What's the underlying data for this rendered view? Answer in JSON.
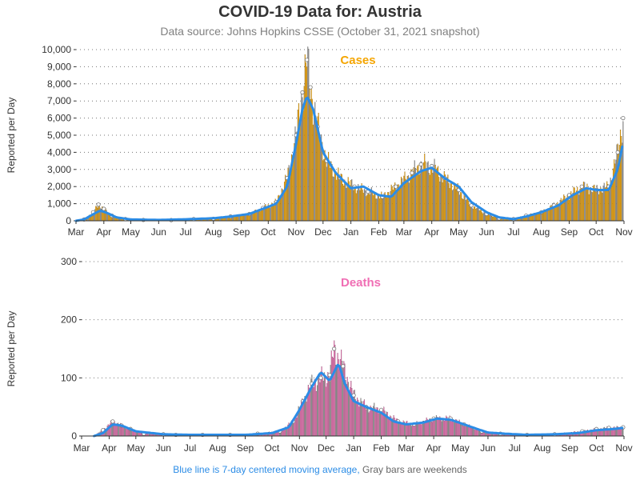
{
  "title": "COVID-19 Data for: Austria",
  "subtitle": "Data source: Johns Hopkins CSSE (October 31, 2021 snapshot)",
  "footnote": {
    "blue": "Blue line is 7-day centered moving average,",
    "gray": "Gray bars are weekends"
  },
  "colors": {
    "cases": "#f5a500",
    "deaths": "#f06eb4",
    "average": "#2b8ce6",
    "weekend": "#999999"
  },
  "chart_data": [
    {
      "type": "bar",
      "title": "Cases",
      "ylabel": "Reported per Day",
      "ylim": [
        0,
        10000
      ],
      "yticks": [
        "0",
        "1,000",
        "2,000",
        "3,000",
        "4,000",
        "5,000",
        "6,000",
        "7,000",
        "8,000",
        "9,000",
        "10,000"
      ],
      "xticks": [
        "Mar",
        "Apr",
        "May",
        "Jun",
        "Jul",
        "Aug",
        "Sep",
        "Oct",
        "Nov",
        "Dec",
        "Jan",
        "Feb",
        "Mar",
        "Apr",
        "May",
        "Jun",
        "Jul",
        "Aug",
        "Sep",
        "Oct",
        "Nov"
      ],
      "x_start": "2020-03-01",
      "x_end": "2021-11-01",
      "grid": "horizontal dotted",
      "series": [
        {
          "name": "Reported per day",
          "points": [
            [
              "2020-03-01",
              0
            ],
            [
              "2020-03-10",
              80
            ],
            [
              "2020-03-20",
              500
            ],
            [
              "2020-03-26",
              950
            ],
            [
              "2020-04-01",
              700
            ],
            [
              "2020-04-10",
              300
            ],
            [
              "2020-04-25",
              100
            ],
            [
              "2020-05-15",
              50
            ],
            [
              "2020-06-15",
              40
            ],
            [
              "2020-07-10",
              100
            ],
            [
              "2020-08-01",
              120
            ],
            [
              "2020-08-20",
              250
            ],
            [
              "2020-09-10",
              400
            ],
            [
              "2020-09-25",
              750
            ],
            [
              "2020-10-10",
              1100
            ],
            [
              "2020-10-22",
              2500
            ],
            [
              "2020-11-01",
              5000
            ],
            [
              "2020-11-08",
              7500
            ],
            [
              "2020-11-13",
              9400
            ],
            [
              "2020-11-17",
              7800
            ],
            [
              "2020-11-25",
              5500
            ],
            [
              "2020-12-05",
              3500
            ],
            [
              "2020-12-20",
              2500
            ],
            [
              "2021-01-05",
              2000
            ],
            [
              "2021-01-20",
              1700
            ],
            [
              "2021-02-05",
              1400
            ],
            [
              "2021-02-20",
              2000
            ],
            [
              "2021-03-10",
              2800
            ],
            [
              "2021-03-20",
              3300
            ],
            [
              "2021-04-01",
              3200
            ],
            [
              "2021-04-15",
              2500
            ],
            [
              "2021-05-01",
              1800
            ],
            [
              "2021-05-15",
              900
            ],
            [
              "2021-06-01",
              400
            ],
            [
              "2021-06-15",
              150
            ],
            [
              "2021-07-01",
              100
            ],
            [
              "2021-07-15",
              300
            ],
            [
              "2021-08-01",
              500
            ],
            [
              "2021-08-15",
              900
            ],
            [
              "2021-09-01",
              1500
            ],
            [
              "2021-09-15",
              2000
            ],
            [
              "2021-10-01",
              1800
            ],
            [
              "2021-10-15",
              2000
            ],
            [
              "2021-10-25",
              4000
            ],
            [
              "2021-10-31",
              6000
            ]
          ]
        },
        {
          "name": "7-day centered moving average",
          "points": [
            [
              "2020-03-01",
              0
            ],
            [
              "2020-03-10",
              80
            ],
            [
              "2020-03-20",
              380
            ],
            [
              "2020-03-28",
              600
            ],
            [
              "2020-04-05",
              450
            ],
            [
              "2020-04-15",
              200
            ],
            [
              "2020-05-01",
              80
            ],
            [
              "2020-06-01",
              50
            ],
            [
              "2020-07-01",
              90
            ],
            [
              "2020-08-01",
              150
            ],
            [
              "2020-08-20",
              250
            ],
            [
              "2020-09-10",
              400
            ],
            [
              "2020-09-25",
              700
            ],
            [
              "2020-10-10",
              1000
            ],
            [
              "2020-10-22",
              2000
            ],
            [
              "2020-11-01",
              4500
            ],
            [
              "2020-11-08",
              6500
            ],
            [
              "2020-11-13",
              7300
            ],
            [
              "2020-11-20",
              6500
            ],
            [
              "2020-12-01",
              4000
            ],
            [
              "2020-12-15",
              2800
            ],
            [
              "2021-01-01",
              1900
            ],
            [
              "2021-01-15",
              2000
            ],
            [
              "2021-02-01",
              1500
            ],
            [
              "2021-02-15",
              1400
            ],
            [
              "2021-03-01",
              2200
            ],
            [
              "2021-03-20",
              2900
            ],
            [
              "2021-04-01",
              3100
            ],
            [
              "2021-04-15",
              2500
            ],
            [
              "2021-05-01",
              2000
            ],
            [
              "2021-05-15",
              1100
            ],
            [
              "2021-06-01",
              500
            ],
            [
              "2021-06-15",
              200
            ],
            [
              "2021-07-01",
              100
            ],
            [
              "2021-07-15",
              250
            ],
            [
              "2021-08-01",
              500
            ],
            [
              "2021-08-20",
              900
            ],
            [
              "2021-09-05",
              1500
            ],
            [
              "2021-09-20",
              1900
            ],
            [
              "2021-10-01",
              1800
            ],
            [
              "2021-10-15",
              1800
            ],
            [
              "2021-10-25",
              3000
            ],
            [
              "2021-10-31",
              4600
            ]
          ]
        }
      ]
    },
    {
      "type": "bar",
      "title": "Deaths",
      "ylabel": "Reported per Day",
      "ylim": [
        0,
        300
      ],
      "yticks": [
        "0",
        "100",
        "200",
        "300"
      ],
      "xticks": [
        "Mar",
        "Apr",
        "May",
        "Jun",
        "Jul",
        "Aug",
        "Sep",
        "Oct",
        "Nov",
        "Dec",
        "Jan",
        "Feb",
        "Mar",
        "Apr",
        "May",
        "Jun",
        "Jul",
        "Aug",
        "Sep",
        "Oct",
        "Nov"
      ],
      "x_start": "2020-03-01",
      "x_end": "2021-11-01",
      "grid": "horizontal dotted",
      "series": [
        {
          "name": "Reported per day",
          "points": [
            [
              "2020-03-01",
              0
            ],
            [
              "2020-03-15",
              0
            ],
            [
              "2020-03-25",
              10
            ],
            [
              "2020-04-05",
              25
            ],
            [
              "2020-04-15",
              18
            ],
            [
              "2020-04-25",
              12
            ],
            [
              "2020-05-10",
              4
            ],
            [
              "2020-06-01",
              3
            ],
            [
              "2020-06-15",
              2
            ],
            [
              "2020-07-15",
              2
            ],
            [
              "2020-08-15",
              2
            ],
            [
              "2020-09-15",
              4
            ],
            [
              "2020-10-10",
              8
            ],
            [
              "2020-10-25",
              25
            ],
            [
              "2020-11-05",
              60
            ],
            [
              "2020-11-15",
              90
            ],
            [
              "2020-11-25",
              100
            ],
            [
              "2020-12-05",
              105
            ],
            [
              "2020-12-10",
              150
            ],
            [
              "2020-12-20",
              120
            ],
            [
              "2021-01-01",
              70
            ],
            [
              "2021-01-15",
              50
            ],
            [
              "2021-02-01",
              45
            ],
            [
              "2021-02-20",
              25
            ],
            [
              "2021-03-10",
              20
            ],
            [
              "2021-04-01",
              30
            ],
            [
              "2021-04-20",
              30
            ],
            [
              "2021-05-05",
              20
            ],
            [
              "2021-05-25",
              8
            ],
            [
              "2021-06-15",
              4
            ],
            [
              "2021-07-15",
              2
            ],
            [
              "2021-08-15",
              3
            ],
            [
              "2021-09-15",
              8
            ],
            [
              "2021-10-01",
              12
            ],
            [
              "2021-10-15",
              14
            ],
            [
              "2021-10-31",
              15
            ]
          ]
        },
        {
          "name": "7-day centered moving average",
          "points": [
            [
              "2020-03-15",
              0
            ],
            [
              "2020-03-25",
              5
            ],
            [
              "2020-04-05",
              20
            ],
            [
              "2020-04-15",
              18
            ],
            [
              "2020-05-01",
              8
            ],
            [
              "2020-06-01",
              3
            ],
            [
              "2020-07-01",
              2
            ],
            [
              "2020-08-01",
              2
            ],
            [
              "2020-09-01",
              2
            ],
            [
              "2020-10-01",
              5
            ],
            [
              "2020-10-20",
              15
            ],
            [
              "2020-11-01",
              45
            ],
            [
              "2020-11-15",
              85
            ],
            [
              "2020-11-25",
              110
            ],
            [
              "2020-12-05",
              95
            ],
            [
              "2020-12-15",
              125
            ],
            [
              "2020-12-22",
              90
            ],
            [
              "2021-01-01",
              60
            ],
            [
              "2021-01-15",
              50
            ],
            [
              "2021-02-01",
              40
            ],
            [
              "2021-02-15",
              25
            ],
            [
              "2021-03-01",
              20
            ],
            [
              "2021-03-20",
              23
            ],
            [
              "2021-04-05",
              30
            ],
            [
              "2021-04-20",
              28
            ],
            [
              "2021-05-05",
              20
            ],
            [
              "2021-05-20",
              12
            ],
            [
              "2021-06-01",
              6
            ],
            [
              "2021-06-20",
              4
            ],
            [
              "2021-07-15",
              2
            ],
            [
              "2021-08-15",
              3
            ],
            [
              "2021-09-10",
              5
            ],
            [
              "2021-10-01",
              10
            ],
            [
              "2021-10-20",
              12
            ],
            [
              "2021-10-31",
              14
            ]
          ]
        }
      ]
    }
  ]
}
